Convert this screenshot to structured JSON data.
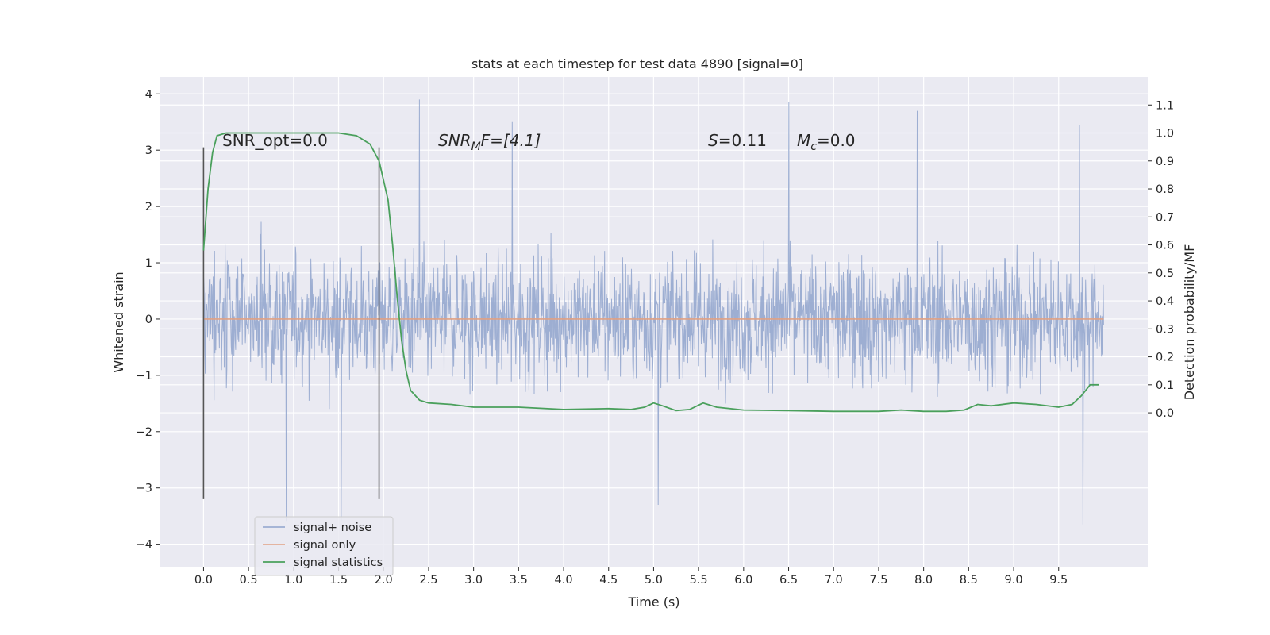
{
  "chart_data": {
    "type": "line",
    "title": "stats at each timestep for test data 4890 [signal=0]",
    "xlabel": "Time (s)",
    "ylabel": "Whitened strain",
    "ylabel_right": "Detection probability/MF",
    "xlim": [
      -0.48,
      10.49
    ],
    "ylim": [
      -4.4,
      4.3
    ],
    "ylim_right": [
      -0.55,
      1.2
    ],
    "x_ticks": [
      "0.0",
      "0.5",
      "1.0",
      "1.5",
      "2.0",
      "2.5",
      "3.0",
      "3.5",
      "4.0",
      "4.5",
      "5.0",
      "5.5",
      "6.0",
      "6.5",
      "7.0",
      "7.5",
      "8.0",
      "8.5",
      "9.0",
      "9.5"
    ],
    "y_ticks": [
      "−4",
      "−3",
      "−2",
      "−1",
      "0",
      "1",
      "2",
      "3",
      "4"
    ],
    "y_right_ticks": [
      "0.0",
      "0.1",
      "0.2",
      "0.3",
      "0.4",
      "0.5",
      "0.6",
      "0.7",
      "0.8",
      "0.9",
      "1.0",
      "1.1"
    ],
    "grid": true,
    "legend_position": "lower-left",
    "colors": {
      "noise": "#8fa3cc",
      "signal": "#e1a183",
      "stats": "#4aa05c",
      "background": "#eaeaf2",
      "vlines": "#555555"
    },
    "vertical_lines": [
      0.0,
      1.95
    ],
    "annotations": {
      "snr_opt": "SNR_opt=0.0",
      "snr_mf_base": "SNR",
      "snr_mf_sub": "M",
      "snr_mf_rest": "F=[4.1]",
      "s_italic": "S",
      "s_rest": "=0.11",
      "mc_base": "M",
      "mc_sub": "c",
      "mc_rest": "=0.0"
    },
    "series": [
      {
        "name": "signal+ noise",
        "description_values": "whitened noise samples 0.0–10.0 s, mostly within ±2.5",
        "x_range": [
          0.0,
          10.0
        ],
        "extremes": [
          {
            "x": 0.92,
            "y": -3.6
          },
          {
            "x": 1.53,
            "y": -3.6
          },
          {
            "x": 2.4,
            "y": 3.9
          },
          {
            "x": 3.43,
            "y": 3.5
          },
          {
            "x": 5.05,
            "y": -3.3
          },
          {
            "x": 6.5,
            "y": 3.85
          },
          {
            "x": 7.93,
            "y": 3.7
          },
          {
            "x": 9.77,
            "y": -3.65
          },
          {
            "x": 9.73,
            "y": 3.45
          }
        ]
      },
      {
        "name": "signal only",
        "x": [
          0.0,
          10.0
        ],
        "y": [
          0.0,
          0.0
        ]
      },
      {
        "name": "signal statistics",
        "axis": "right",
        "x": [
          0.0,
          0.05,
          0.1,
          0.15,
          0.25,
          0.5,
          1.0,
          1.5,
          1.7,
          1.85,
          1.95,
          2.05,
          2.1,
          2.15,
          2.2,
          2.25,
          2.3,
          2.4,
          2.5,
          2.75,
          3.0,
          3.25,
          3.5,
          4.0,
          4.5,
          4.75,
          4.9,
          5.0,
          5.1,
          5.25,
          5.4,
          5.55,
          5.7,
          6.0,
          6.5,
          7.0,
          7.5,
          7.75,
          8.0,
          8.25,
          8.45,
          8.6,
          8.75,
          9.0,
          9.25,
          9.5,
          9.65,
          9.75,
          9.85,
          9.95
        ],
        "y": [
          0.58,
          0.8,
          0.93,
          0.99,
          1.0,
          1.0,
          1.0,
          1.0,
          0.99,
          0.96,
          0.9,
          0.76,
          0.6,
          0.42,
          0.26,
          0.15,
          0.08,
          0.045,
          0.035,
          0.03,
          0.02,
          0.02,
          0.02,
          0.012,
          0.015,
          0.012,
          0.02,
          0.035,
          0.025,
          0.008,
          0.012,
          0.035,
          0.02,
          0.01,
          0.008,
          0.005,
          0.005,
          0.01,
          0.005,
          0.005,
          0.01,
          0.03,
          0.025,
          0.035,
          0.03,
          0.02,
          0.03,
          0.06,
          0.1,
          0.1
        ]
      }
    ]
  }
}
